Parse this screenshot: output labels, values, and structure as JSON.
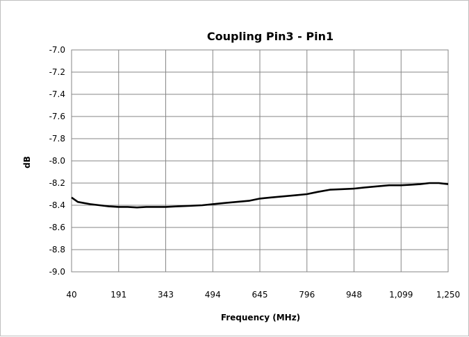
{
  "chart_data": {
    "type": "line",
    "title": "Coupling Pin3 - Pin1",
    "xlabel": "Frequency (MHz)",
    "ylabel": "dB",
    "xlim": [
      40,
      1250
    ],
    "ylim": [
      -9.0,
      -7.0
    ],
    "x_tick_labels": [
      "40",
      "191",
      "343",
      "494",
      "645",
      "796",
      "948",
      "1,099",
      "1,250"
    ],
    "y_tick_labels": [
      "-7.0",
      "-7.2",
      "-7.4",
      "-7.6",
      "-7.8",
      "-8.0",
      "-8.2",
      "-8.4",
      "-8.6",
      "-8.8",
      "-9.0"
    ],
    "grid": true,
    "legend": "none",
    "series": [
      {
        "color": "#000000",
        "x": [
          40,
          60,
          80,
          100,
          130,
          160,
          191,
          220,
          250,
          280,
          310,
          343,
          380,
          420,
          460,
          494,
          530,
          570,
          610,
          645,
          680,
          720,
          760,
          796,
          830,
          870,
          910,
          948,
          980,
          1020,
          1060,
          1099,
          1130,
          1160,
          1190,
          1220,
          1250
        ],
        "y": [
          -8.33,
          -8.37,
          -8.38,
          -8.39,
          -8.4,
          -8.41,
          -8.415,
          -8.415,
          -8.42,
          -8.415,
          -8.415,
          -8.415,
          -8.41,
          -8.405,
          -8.4,
          -8.39,
          -8.38,
          -8.37,
          -8.36,
          -8.34,
          -8.33,
          -8.32,
          -8.31,
          -8.3,
          -8.28,
          -8.26,
          -8.255,
          -8.25,
          -8.24,
          -8.23,
          -8.22,
          -8.22,
          -8.215,
          -8.21,
          -8.2,
          -8.2,
          -8.21
        ]
      }
    ]
  }
}
